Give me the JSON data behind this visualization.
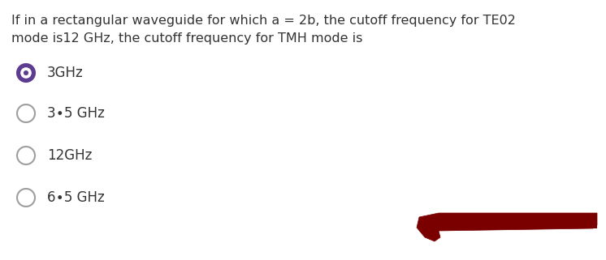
{
  "question_line1": "If in a rectangular waveguide for which a = 2b, the cutoff frequency for TE02",
  "question_line2": "mode is12 GHz, the cutoff frequency for TMH mode is",
  "options": [
    "3GHz",
    "3∙5 GHz",
    "12GHz",
    "6∙5 GHz"
  ],
  "selected_index": 0,
  "text_color": "#333333",
  "circle_color": "#9e9e9e",
  "selected_fill": "#5c3d8f",
  "selected_border": "#5c3d8f",
  "background_color": "#ffffff",
  "question_fontsize": 11.5,
  "option_fontsize": 12,
  "arrow_color": "#7a0000",
  "figsize": [
    7.46,
    3.21
  ],
  "dpi": 100
}
